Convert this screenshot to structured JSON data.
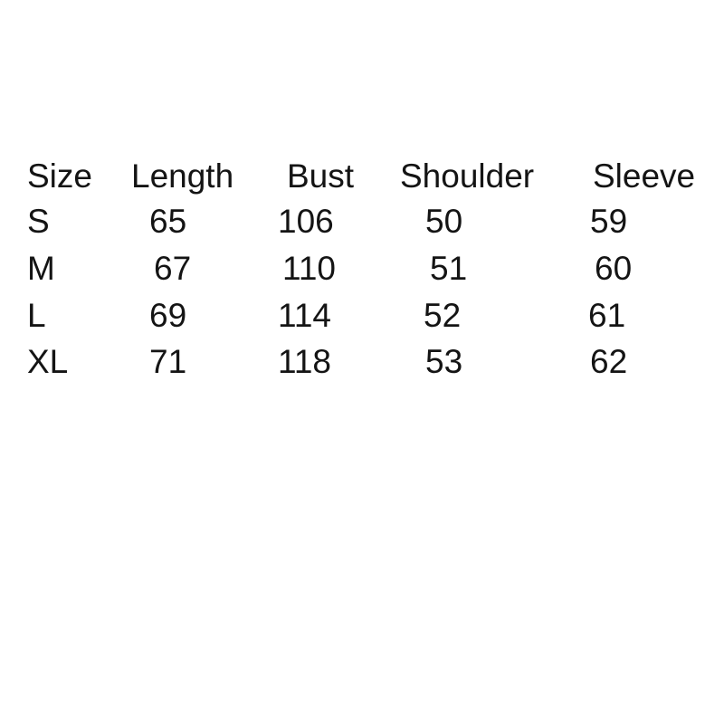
{
  "table": {
    "headers": [
      "Size",
      "Length",
      "Bust",
      "Shoulder",
      "Sleeve"
    ],
    "rows": [
      [
        "S",
        "65",
        "106",
        "50",
        "59"
      ],
      [
        "M",
        "67",
        "110",
        "51",
        "60"
      ],
      [
        "L",
        "69",
        "114",
        "52",
        "61"
      ],
      [
        "XL",
        "71",
        "118",
        "53",
        "62"
      ]
    ]
  }
}
